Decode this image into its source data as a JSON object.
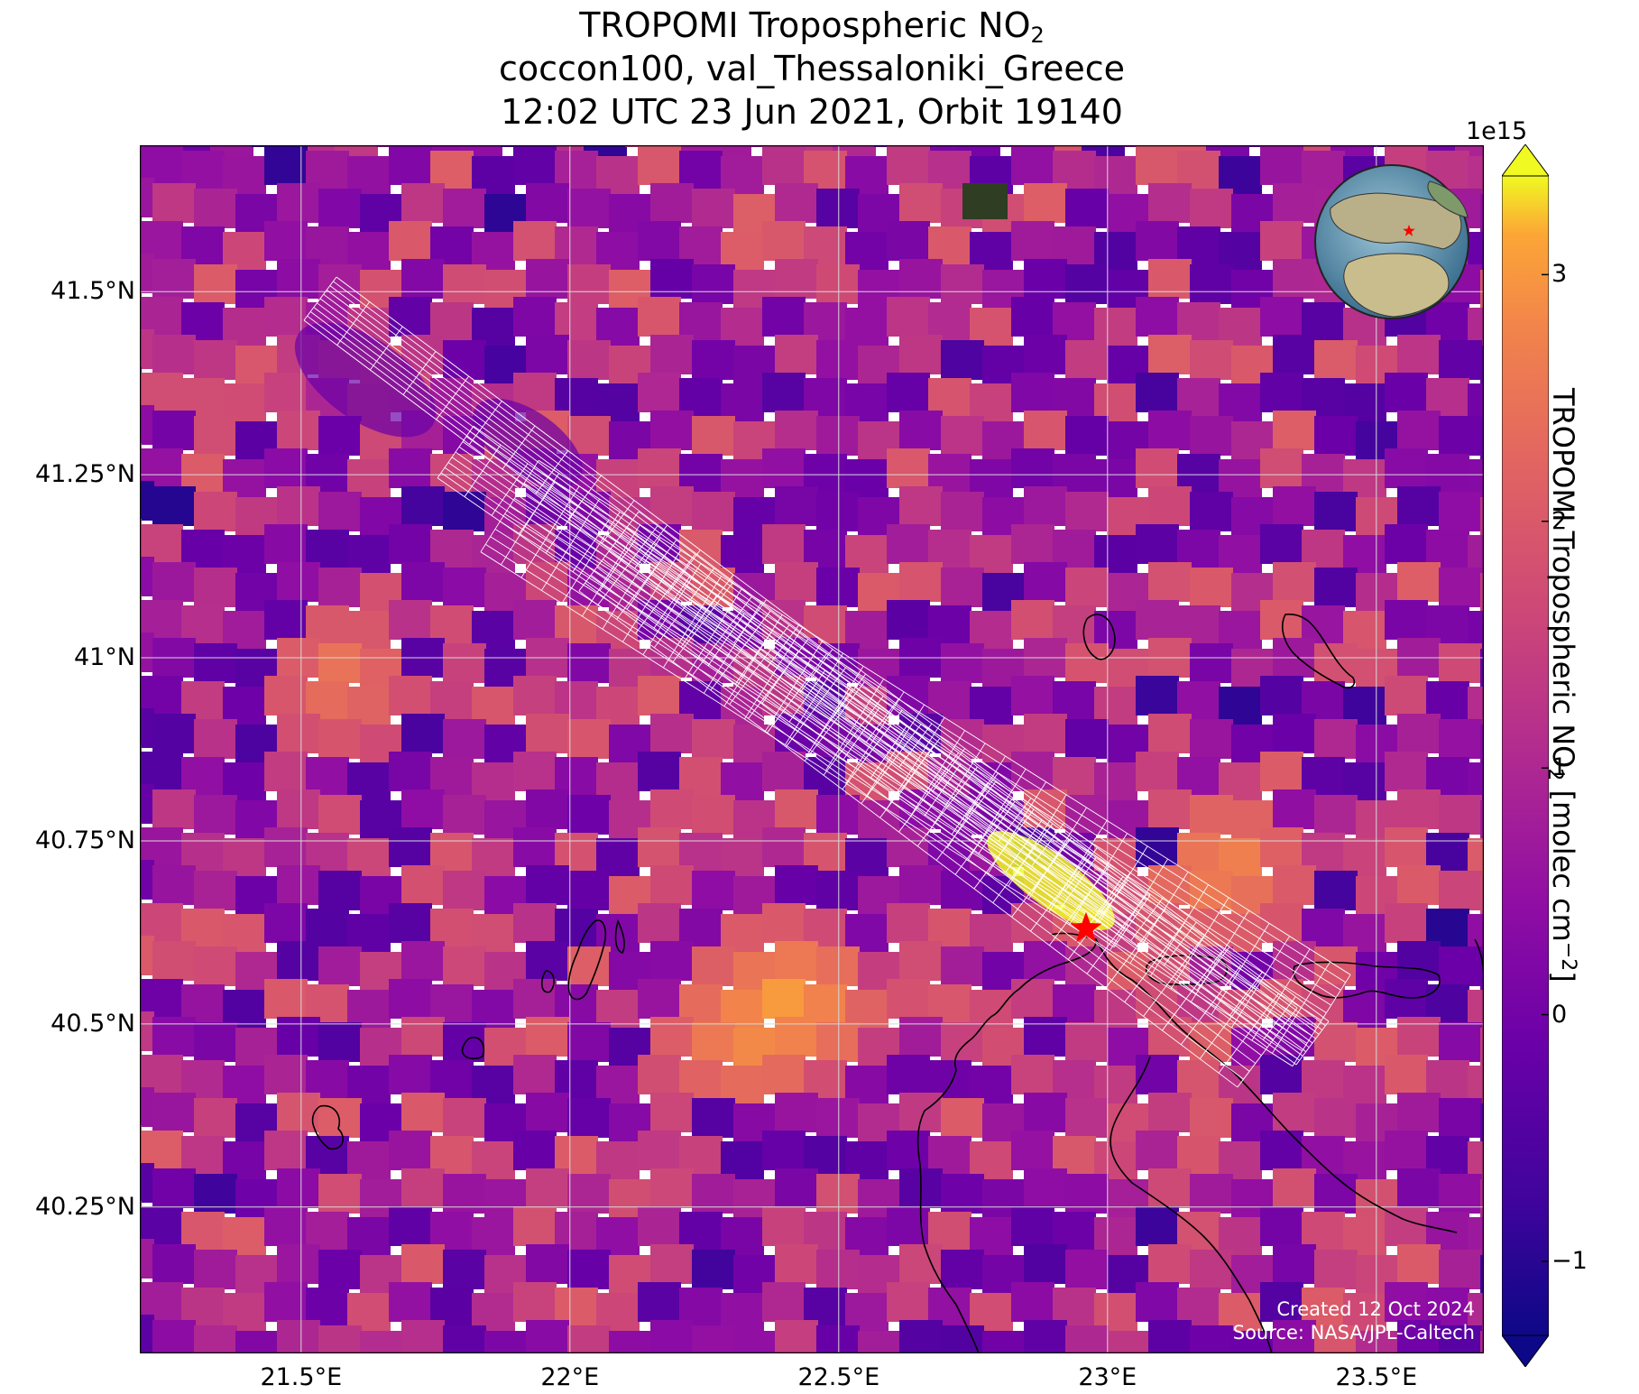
{
  "title": {
    "line1_prefix": "TROPOMI Tropospheric NO",
    "line1_sub": "2",
    "line2": "coccon100, val_Thessaloniki_Greece",
    "line3": "12:02 UTC 23 Jun 2021, Orbit 19140"
  },
  "map": {
    "extent": {
      "lon_min": 21.2,
      "lon_max": 23.7,
      "lat_min": 40.05,
      "lat_max": 41.7
    },
    "lat_ticks": [
      {
        "value": 41.5,
        "label": "41.5°N"
      },
      {
        "value": 41.25,
        "label": "41.25°N"
      },
      {
        "value": 41.0,
        "label": "41°N"
      },
      {
        "value": 40.75,
        "label": "40.75°N"
      },
      {
        "value": 40.5,
        "label": "40.5°N"
      },
      {
        "value": 40.25,
        "label": "40.25°N"
      }
    ],
    "lon_ticks": [
      {
        "value": 21.5,
        "label": "21.5°E"
      },
      {
        "value": 22.0,
        "label": "22°E"
      },
      {
        "value": 22.5,
        "label": "22.5°E"
      },
      {
        "value": 23.0,
        "label": "23°E"
      },
      {
        "value": 23.5,
        "label": "23.5°E"
      }
    ],
    "site_marker": {
      "lon": 22.96,
      "lat": 40.63,
      "color": "#ff0000",
      "shape": "star"
    },
    "globe_inset": {
      "center_region": "Mediterranean",
      "marker_color": "#ff0000"
    },
    "colors": {
      "grid": "#d9d9d9",
      "coastline": "#000000",
      "footprint": "#ffffff"
    }
  },
  "credits": {
    "created": "Created 12 Oct 2024",
    "source": "Source: NASA/JPL-Caltech"
  },
  "colorbar": {
    "colormap": "plasma",
    "min": -1.3,
    "max": 3.4,
    "extend": "both",
    "exponent_label": "1e15",
    "ticks": [
      {
        "value": 3,
        "label": "3"
      },
      {
        "value": 2,
        "label": "2"
      },
      {
        "value": 1,
        "label": "1"
      },
      {
        "value": 0,
        "label": "0"
      },
      {
        "value": -1,
        "label": "−1"
      }
    ],
    "label_prefix": "TROPOMI Tropospheric NO",
    "label_sub": "2",
    "label_mid": " [molec cm",
    "label_sup": "−2",
    "label_suffix": "]"
  }
}
